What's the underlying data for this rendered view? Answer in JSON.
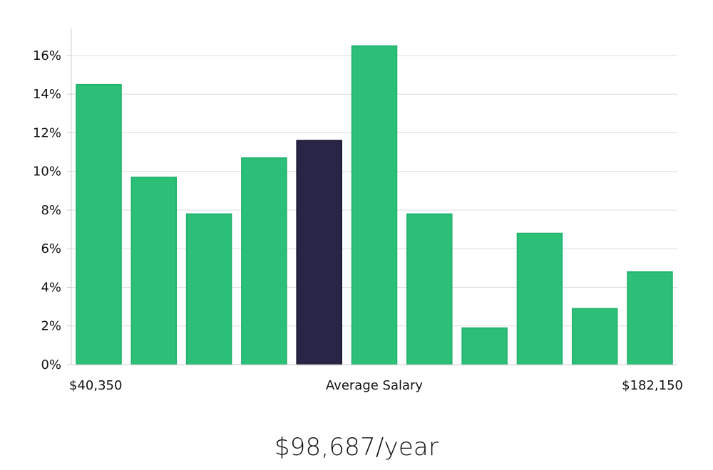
{
  "chart_data": {
    "type": "bar",
    "values": [
      14.5,
      9.7,
      7.8,
      10.7,
      11.6,
      16.5,
      7.8,
      1.9,
      6.8,
      2.9,
      4.8
    ],
    "highlight_index": 4,
    "ylim": [
      0,
      17.4
    ],
    "yticks": [
      0,
      2,
      4,
      6,
      8,
      10,
      12,
      14,
      16
    ],
    "ytick_suffix": "%",
    "grid": true,
    "x_min_label": "$40,350",
    "xlabel": "Average Salary",
    "x_max_label": "$182,150",
    "colors": {
      "bar": "#2bbf78",
      "bar_edge": "#1fb06b",
      "highlight": "#292546",
      "highlight_edge": "#141229",
      "grid": "#dcdcdc",
      "axis": "#cccccc"
    }
  },
  "summary": {
    "headline": "$98,687/year"
  }
}
